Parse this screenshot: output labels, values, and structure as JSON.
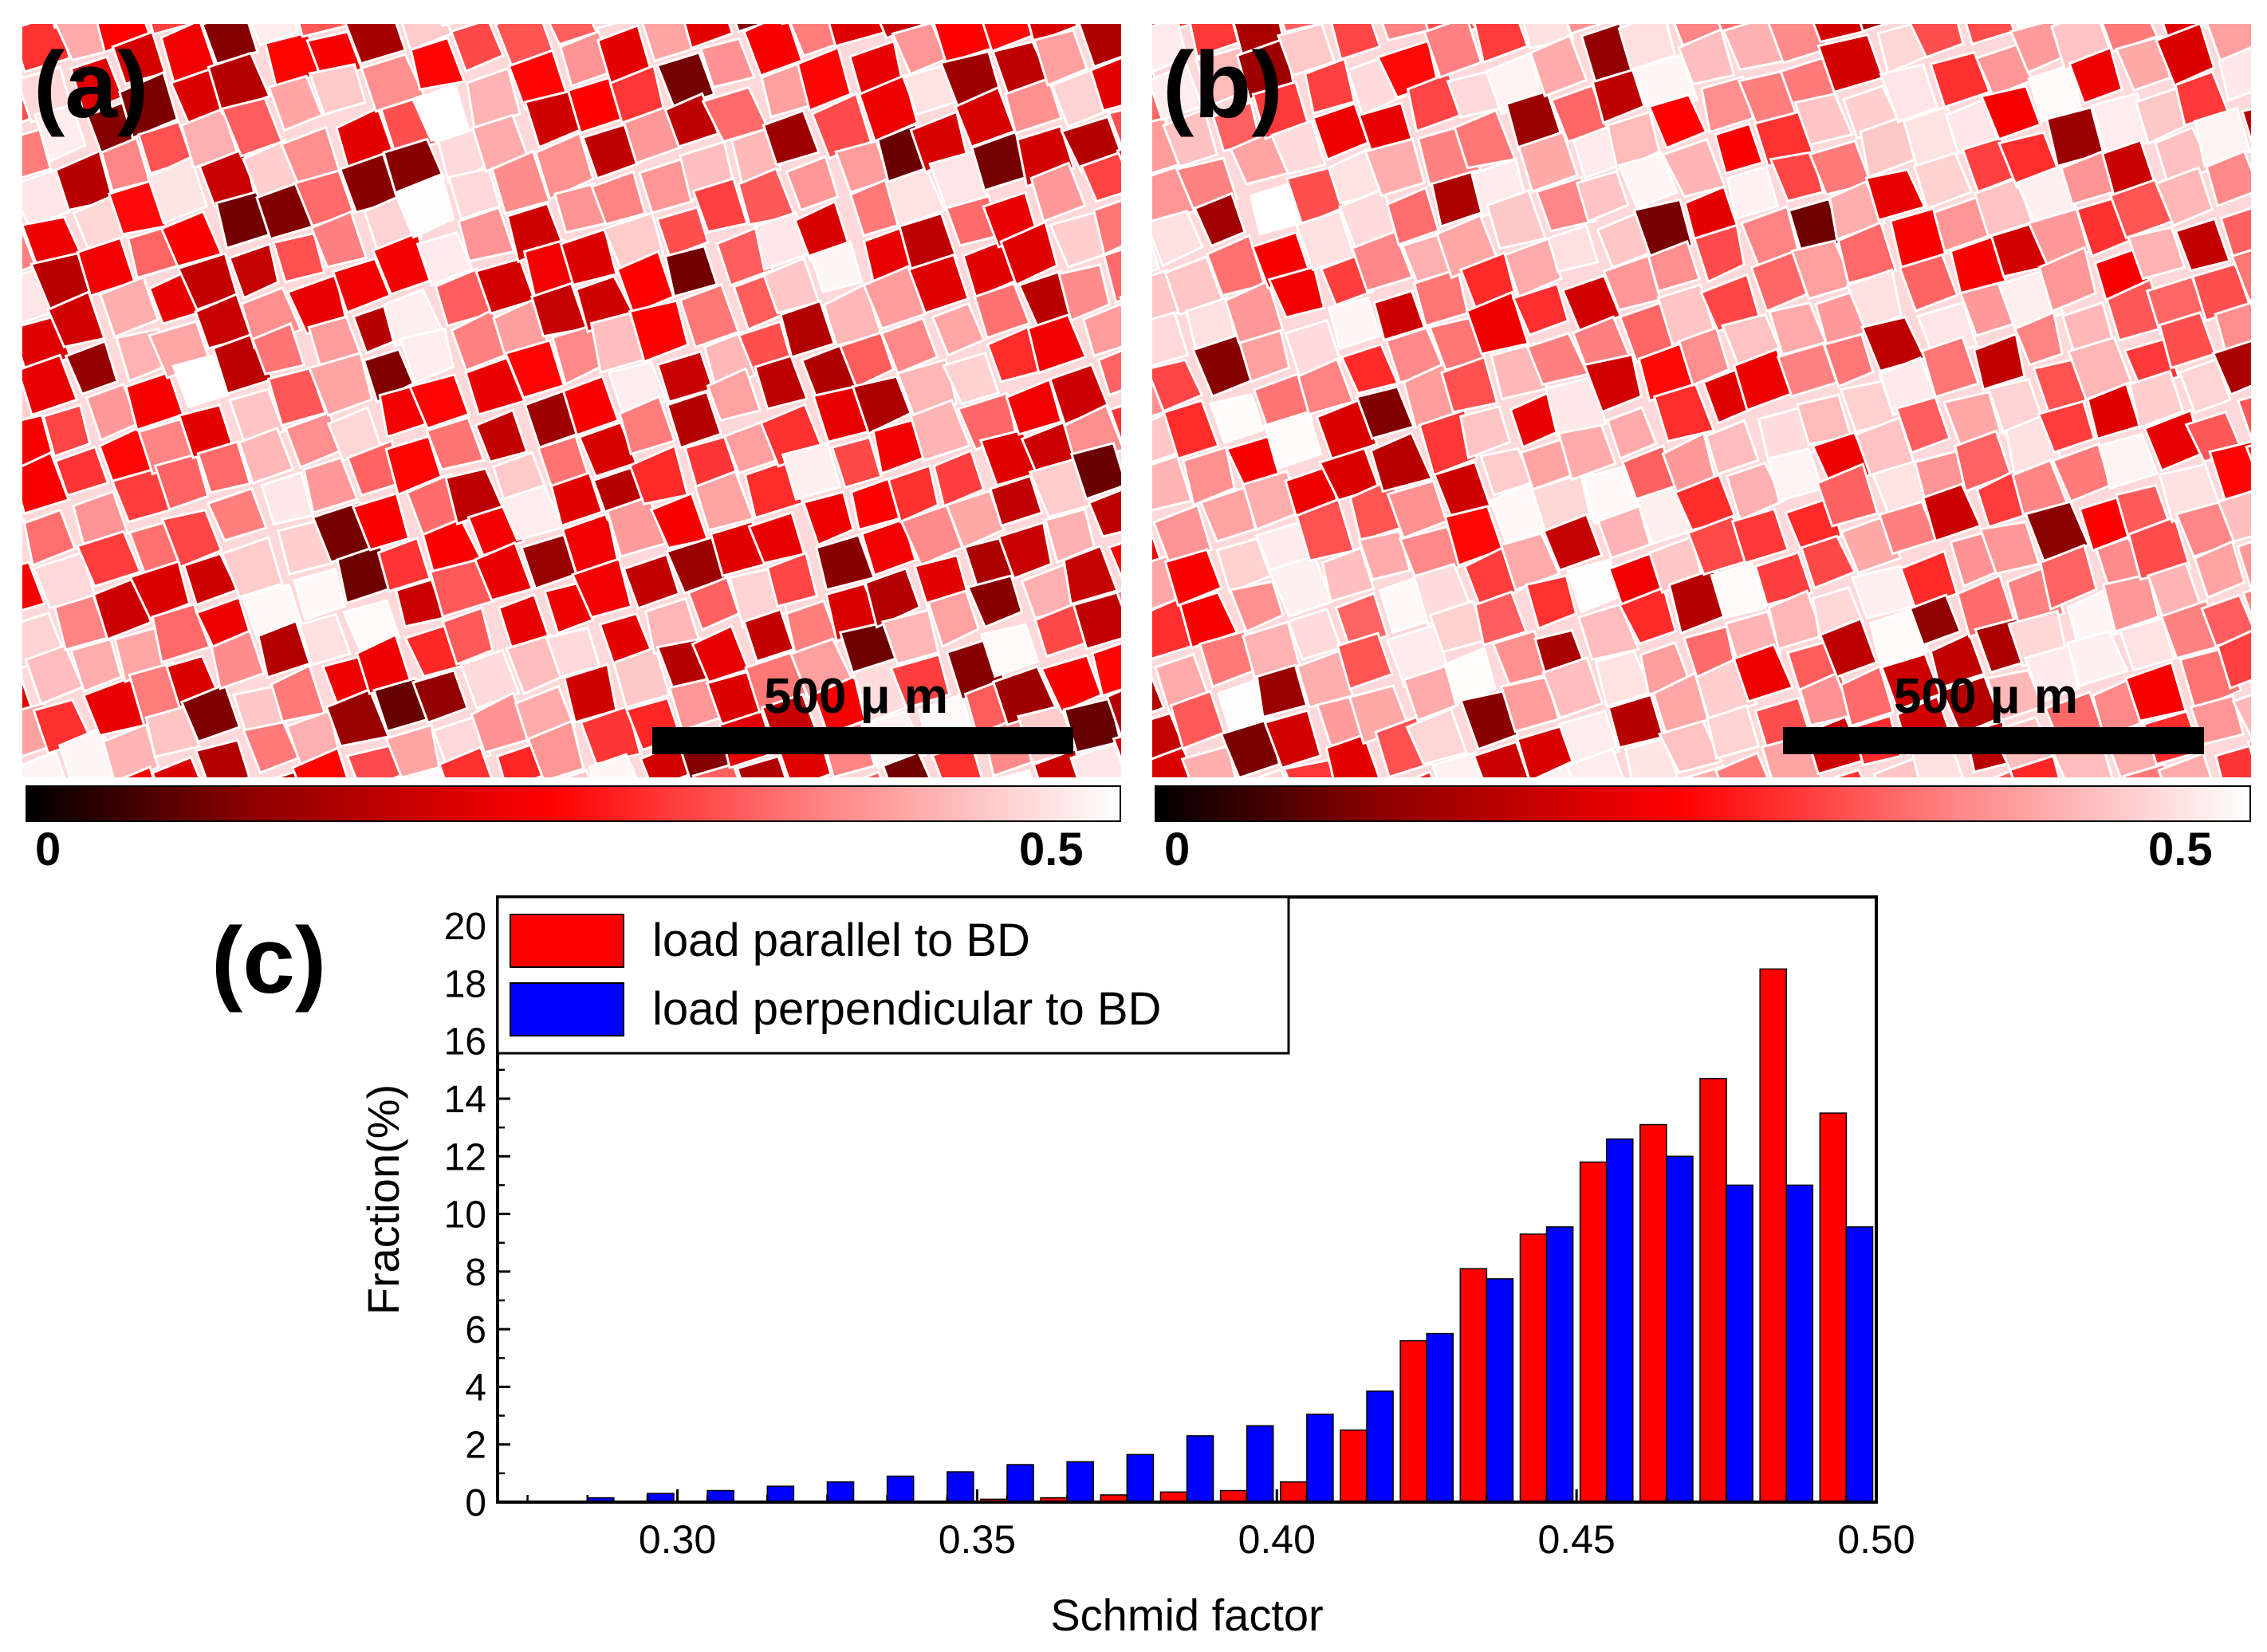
{
  "panels": [
    {
      "label": "(a)",
      "scale_label": "500 μ m",
      "colorbar": {
        "min": "0",
        "max": "0.5"
      },
      "map_color": "#ff0000"
    },
    {
      "label": "(b)",
      "scale_label": "500 μ m",
      "colorbar": {
        "min": "0",
        "max": "0.5"
      },
      "map_color": "#ff0000"
    }
  ],
  "chart_data": {
    "panel_label": "(c)",
    "type": "bar",
    "xlabel": "Schmid factor",
    "ylabel": "Fraction(%)",
    "xlim": [
      0.27,
      0.5
    ],
    "ylim": [
      0,
      21
    ],
    "xticks": [
      "0.30",
      "0.35",
      "0.40",
      "0.45",
      "0.50"
    ],
    "xtick_values": [
      0.3,
      0.35,
      0.4,
      0.45,
      0.5
    ],
    "yticks": [
      0,
      2,
      4,
      6,
      8,
      10,
      12,
      14,
      16,
      18,
      20
    ],
    "bin_centers": [
      0.285,
      0.295,
      0.305,
      0.315,
      0.325,
      0.335,
      0.345,
      0.355,
      0.365,
      0.375,
      0.385,
      0.395,
      0.405,
      0.415,
      0.425,
      0.435,
      0.445,
      0.455,
      0.465,
      0.475,
      0.485,
      0.495
    ],
    "series": [
      {
        "name": "load parallel to BD",
        "color": "#ff0000",
        "values": [
          0,
          0,
          0,
          0,
          0,
          0,
          0,
          0.1,
          0.15,
          0.25,
          0.35,
          0.4,
          0.7,
          2.5,
          5.6,
          8.1,
          9.3,
          11.8,
          13.1,
          14.7,
          18.5,
          13.5
        ]
      },
      {
        "name": "load perpendicular to BD",
        "color": "#0000ff",
        "values": [
          0.15,
          0.3,
          0.4,
          0.55,
          0.7,
          0.9,
          1.05,
          1.3,
          1.4,
          1.65,
          2.3,
          2.65,
          3.05,
          3.85,
          5.85,
          7.75,
          9.55,
          12.6,
          12.0,
          11.0,
          11.0,
          9.55
        ]
      }
    ],
    "legend_position": "top-left"
  }
}
